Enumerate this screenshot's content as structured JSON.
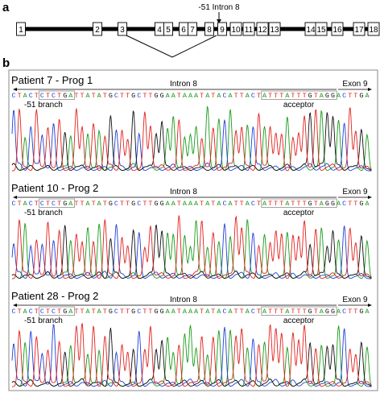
{
  "panel_a": {
    "letter": "a",
    "annotation": "-51 Intron 8",
    "exons": [
      "1",
      "2",
      "3",
      "4",
      "5",
      "6",
      "7",
      "8",
      "9",
      "10",
      "11",
      "12",
      "13",
      "14",
      "15",
      "16",
      "17",
      "18"
    ]
  },
  "panel_b": {
    "letter": "b",
    "sequence": [
      "C",
      "T",
      "A",
      "C",
      "T",
      "C",
      "T",
      "C",
      "T",
      "G",
      "A",
      "T",
      "T",
      "A",
      "T",
      "A",
      "T",
      "G",
      "C",
      "T",
      "T",
      "G",
      "C",
      "T",
      "T",
      "G",
      "G",
      "A",
      "A",
      "T",
      "A",
      "A",
      "A",
      "T",
      "A",
      "T",
      "A",
      "C",
      "A",
      "T",
      "T",
      "A",
      "C",
      "T",
      "A",
      "T",
      "T",
      "T",
      "A",
      "T",
      "T",
      "T",
      "G",
      "T",
      "A",
      "G",
      "G",
      "A",
      "C",
      "T",
      "T",
      "G",
      "A"
    ],
    "colors": {
      "A": "#1a9a1a",
      "C": "#1f3fd6",
      "G": "#111111",
      "T": "#e0201c"
    },
    "tracks": [
      {
        "title": "Patient 7 - Prog 1",
        "intron_label": "Intron 8",
        "exon_label": "Exon 9",
        "branch_label": "-51 branch",
        "acceptor_label": "acceptor"
      },
      {
        "title": "Patient 10 - Prog 2",
        "intron_label": "Intron 8",
        "exon_label": "Exon 9",
        "branch_label": "-51 branch",
        "acceptor_label": "acceptor"
      },
      {
        "title": "Patient 28 - Prog 2",
        "intron_label": "Intron 8",
        "exon_label": "Exon 9",
        "branch_label": "-51 branch",
        "acceptor_label": "acceptor"
      }
    ]
  }
}
